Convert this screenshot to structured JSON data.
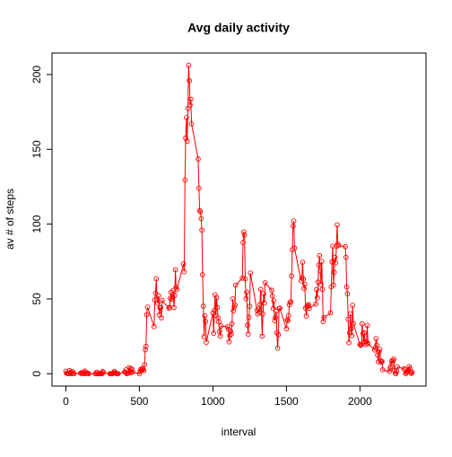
{
  "chart_data": {
    "type": "line",
    "title": "Avg daily activity",
    "x_label": "interval",
    "y_label": "av # of steps",
    "x": [
      0,
      5,
      10,
      15,
      20,
      25,
      30,
      35,
      40,
      45,
      50,
      55,
      100,
      105,
      110,
      115,
      120,
      125,
      130,
      135,
      140,
      145,
      150,
      155,
      200,
      205,
      210,
      215,
      220,
      225,
      230,
      235,
      240,
      245,
      250,
      255,
      300,
      305,
      310,
      315,
      320,
      325,
      330,
      335,
      340,
      345,
      350,
      355,
      400,
      405,
      410,
      415,
      420,
      425,
      430,
      435,
      440,
      445,
      450,
      455,
      500,
      505,
      510,
      515,
      520,
      525,
      530,
      535,
      540,
      545,
      550,
      555,
      600,
      605,
      610,
      615,
      620,
      625,
      630,
      635,
      640,
      645,
      650,
      655,
      700,
      705,
      710,
      715,
      720,
      725,
      730,
      735,
      740,
      745,
      750,
      755,
      800,
      805,
      810,
      815,
      820,
      825,
      830,
      835,
      840,
      845,
      850,
      855,
      900,
      905,
      910,
      915,
      920,
      925,
      930,
      935,
      940,
      945,
      950,
      955,
      1000,
      1005,
      1010,
      1015,
      1020,
      1025,
      1030,
      1035,
      1040,
      1045,
      1050,
      1055,
      1100,
      1105,
      1110,
      1115,
      1120,
      1125,
      1130,
      1135,
      1140,
      1145,
      1150,
      1155,
      1200,
      1205,
      1210,
      1215,
      1220,
      1225,
      1230,
      1235,
      1240,
      1245,
      1250,
      1255,
      1300,
      1305,
      1310,
      1315,
      1320,
      1325,
      1330,
      1335,
      1340,
      1345,
      1350,
      1355,
      1400,
      1405,
      1410,
      1415,
      1420,
      1425,
      1430,
      1435,
      1440,
      1445,
      1450,
      1455,
      1500,
      1505,
      1510,
      1515,
      1520,
      1525,
      1530,
      1535,
      1540,
      1545,
      1550,
      1555,
      1600,
      1605,
      1610,
      1615,
      1620,
      1625,
      1630,
      1635,
      1640,
      1645,
      1650,
      1655,
      1700,
      1705,
      1710,
      1715,
      1720,
      1725,
      1730,
      1735,
      1740,
      1745,
      1750,
      1755,
      1800,
      1805,
      1810,
      1815,
      1820,
      1825,
      1830,
      1835,
      1840,
      1845,
      1850,
      1855,
      1900,
      1905,
      1910,
      1915,
      1920,
      1925,
      1930,
      1935,
      1940,
      1945,
      1950,
      1955,
      2000,
      2005,
      2010,
      2015,
      2020,
      2025,
      2030,
      2035,
      2040,
      2045,
      2050,
      2055,
      2100,
      2105,
      2110,
      2115,
      2120,
      2125,
      2130,
      2135,
      2140,
      2145,
      2150,
      2155,
      2200,
      2205,
      2210,
      2215,
      2220,
      2225,
      2230,
      2235,
      2240,
      2245,
      2250,
      2255,
      2300,
      2305,
      2310,
      2315,
      2320,
      2325,
      2330,
      2335,
      2340,
      2345,
      2350,
      2355
    ],
    "series": [
      {
        "name": "av # of steps",
        "color": "#ff0000",
        "values": [
          1.7,
          0.3,
          0.1,
          0.2,
          0.1,
          2.1,
          0.5,
          0.9,
          0,
          1.5,
          0.3,
          0.1,
          0.3,
          0.7,
          0.2,
          0.3,
          0,
          1.1,
          1.8,
          0.2,
          0.2,
          0.4,
          0.3,
          0,
          0,
          0,
          1.1,
          0,
          0,
          0.1,
          0,
          0.2,
          0,
          0,
          1.6,
          0.9,
          0,
          0,
          0,
          0,
          0.2,
          0.6,
          1.6,
          0.6,
          0.5,
          0.1,
          0,
          0,
          1.2,
          0.9,
          2.6,
          0,
          0.3,
          0.4,
          4.1,
          0.7,
          3.5,
          0.8,
          3.1,
          1.1,
          0,
          1.6,
          3,
          2.2,
          3.3,
          3,
          2.1,
          6.1,
          16,
          18.3,
          39.5,
          44.5,
          31.5,
          49.3,
          53.8,
          63.5,
          50,
          47.1,
          52.2,
          39.3,
          44,
          44.2,
          37.4,
          49,
          43.8,
          44.4,
          50.5,
          54.5,
          49.9,
          51,
          55.7,
          44.3,
          52.3,
          69.5,
          57.8,
          56.2,
          73.4,
          68.2,
          129.4,
          157.5,
          171.2,
          155.4,
          177.3,
          206.2,
          195.9,
          179.6,
          183.4,
          167,
          143.5,
          124,
          109.1,
          108.1,
          103.7,
          96,
          66.2,
          45.2,
          24.8,
          38.8,
          35,
          21.1,
          40.6,
          27,
          42.4,
          52.7,
          38.9,
          50.8,
          44.3,
          37.4,
          34.7,
          28.3,
          25.1,
          31.9,
          31.4,
          29.7,
          21.3,
          25.5,
          28.4,
          26.5,
          33.4,
          50,
          42,
          44.6,
          46,
          59.2,
          63.9,
          87.7,
          94.8,
          92.8,
          63.4,
          50.2,
          54.5,
          32.4,
          26.5,
          37.7,
          45.1,
          67.3,
          42.3,
          39.9,
          43.3,
          41,
          46.2,
          56.4,
          42.8,
          25.1,
          40,
          53.5,
          47.3,
          60.8,
          55.8,
          52,
          43.6,
          48.7,
          35.5,
          37.5,
          41.8,
          27.5,
          17.1,
          26.1,
          43.6,
          43.8,
          30,
          36.1,
          35.5,
          38.8,
          46,
          47.8,
          48.1,
          65.3,
          82.9,
          98.7,
          102.1,
          84,
          62.1,
          64.1,
          74.5,
          63.2,
          56.9,
          59.8,
          43.9,
          38.6,
          44.7,
          45.5,
          46.2,
          43.7,
          46.6,
          56.3,
          50.7,
          61.2,
          72.7,
          78.9,
          68.9,
          59.7,
          75.1,
          56.5,
          34.8,
          37.5,
          40.7,
          58,
          74.7,
          85.3,
          59.3,
          67.8,
          77.7,
          74.2,
          85.3,
          99.5,
          86.6,
          85.6,
          84.9,
          77.8,
          58,
          53.4,
          36.3,
          20.7,
          27.4,
          40,
          30.2,
          25.5,
          45.7,
          33.5,
          19.6,
          19,
          19.3,
          33.3,
          26.8,
          21.2,
          27.3,
          21.3,
          19.5,
          21.3,
          32.3,
          20.2,
          15.9,
          17.2,
          23.5,
          19.2,
          12.5,
          8,
          14.7,
          16.3,
          8.7,
          7.8,
          8.1,
          2.6,
          1.5,
          3.7,
          4.8,
          8.5,
          7.1,
          8.7,
          9.8,
          2.2,
          0.3,
          0.1,
          1.6,
          4.6,
          3.3,
          2.8,
          0,
          0.8,
          1,
          1.6,
          2.6,
          4.7,
          3.3,
          0.6,
          0.2,
          1.1
        ]
      }
    ],
    "xlim": [
      -94.2,
      2449.2
    ],
    "ylim": [
      -8.25,
      214.4
    ],
    "xticks": [
      0,
      500,
      1000,
      1500,
      2000
    ],
    "yticks": [
      0,
      50,
      100,
      150,
      200
    ]
  }
}
